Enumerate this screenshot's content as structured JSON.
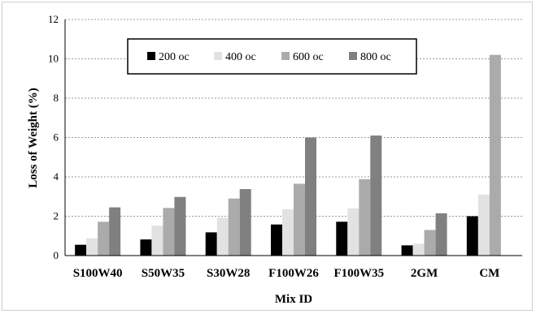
{
  "chart_data": {
    "type": "bar",
    "xlabel": "Mix ID",
    "ylabel": "Loss of Weight (%)",
    "ylim": [
      0,
      12
    ],
    "yticks": [
      "0",
      "2",
      "4",
      "6",
      "8",
      "10",
      "12"
    ],
    "grid": true,
    "legend_position": "top-center",
    "categories": [
      "S100W40",
      "S50W35",
      "S30W28",
      "F100W26",
      "F100W35",
      "2GM",
      "CM"
    ],
    "series": [
      {
        "name": "200 oc",
        "color": "#000000",
        "values": [
          0.55,
          0.82,
          1.18,
          1.58,
          1.72,
          0.52,
          2.0
        ]
      },
      {
        "name": "400 oc",
        "color": "#e2e2e2",
        "values": [
          0.88,
          1.52,
          1.92,
          2.35,
          2.4,
          0.6,
          3.1
        ]
      },
      {
        "name": "600 oc",
        "color": "#ababab",
        "values": [
          1.72,
          2.42,
          2.9,
          3.65,
          3.88,
          1.3,
          10.2
        ]
      },
      {
        "name": "800 oc",
        "color": "#808080",
        "values": [
          2.45,
          2.98,
          3.38,
          6.0,
          6.1,
          2.15,
          null
        ]
      }
    ]
  }
}
